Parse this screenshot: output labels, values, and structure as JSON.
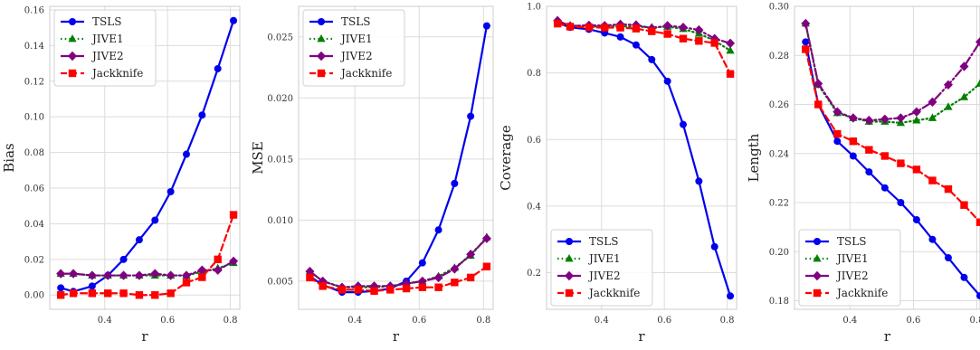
{
  "colors": {
    "TSLS": "#0000ee",
    "JIVE1": "#008000",
    "JIVE2": "#800080",
    "Jackknife": "#ff0000",
    "grid": "#dcdcdc",
    "frame": "#cccccc"
  },
  "chart_data": [
    {
      "type": "line",
      "xlabel": "r",
      "ylabel": "Bias",
      "xlim": [
        0.225,
        0.83
      ],
      "ylim": [
        -0.008,
        0.162
      ],
      "xticks": [
        0.4,
        0.6,
        0.8
      ],
      "xtick_labels": [
        "0.4",
        "0.6",
        "0.8"
      ],
      "yticks": [
        0.0,
        0.02,
        0.04,
        0.06,
        0.08,
        0.1,
        0.12,
        0.14,
        0.16
      ],
      "ytick_labels": [
        "0.00",
        "0.02",
        "0.04",
        "0.06",
        "0.08",
        "0.10",
        "0.12",
        "0.14",
        "0.16"
      ],
      "grid": true,
      "legend": "upper-left",
      "x": [
        0.26,
        0.3,
        0.36,
        0.41,
        0.46,
        0.51,
        0.56,
        0.61,
        0.66,
        0.71,
        0.76,
        0.81
      ],
      "series": [
        {
          "name": "TSLS",
          "values": [
            0.004,
            0.002,
            0.005,
            0.011,
            0.02,
            0.031,
            0.042,
            0.058,
            0.079,
            0.101,
            0.127,
            0.154
          ]
        },
        {
          "name": "JIVE1",
          "values": [
            0.012,
            0.012,
            0.011,
            0.011,
            0.011,
            0.011,
            0.011,
            0.011,
            0.011,
            0.013,
            0.015,
            0.018
          ]
        },
        {
          "name": "JIVE2",
          "values": [
            0.012,
            0.012,
            0.011,
            0.011,
            0.011,
            0.011,
            0.012,
            0.011,
            0.011,
            0.014,
            0.014,
            0.019
          ]
        },
        {
          "name": "Jackknife",
          "values": [
            0.0,
            0.001,
            0.001,
            0.001,
            0.001,
            0.0,
            0.0,
            0.001,
            0.007,
            0.01,
            0.02,
            0.045
          ]
        }
      ]
    },
    {
      "type": "line",
      "xlabel": "r",
      "ylabel": "MSE",
      "xlim": [
        0.225,
        0.83
      ],
      "ylim": [
        0.0027,
        0.0275
      ],
      "xticks": [
        0.4,
        0.6,
        0.8
      ],
      "xtick_labels": [
        "0.4",
        "0.6",
        "0.8"
      ],
      "yticks": [
        0.005,
        0.01,
        0.015,
        0.02,
        0.025
      ],
      "ytick_labels": [
        "0.005",
        "0.010",
        "0.015",
        "0.020",
        "0.025"
      ],
      "grid": true,
      "legend": "upper-left",
      "x": [
        0.26,
        0.3,
        0.36,
        0.41,
        0.46,
        0.51,
        0.56,
        0.61,
        0.66,
        0.71,
        0.76,
        0.81
      ],
      "series": [
        {
          "name": "TSLS",
          "values": [
            0.0054,
            0.0047,
            0.0041,
            0.0041,
            0.0042,
            0.0044,
            0.005,
            0.0065,
            0.0092,
            0.013,
            0.0185,
            0.0259
          ]
        },
        {
          "name": "JIVE1",
          "values": [
            0.0058,
            0.005,
            0.0045,
            0.0045,
            0.0045,
            0.0046,
            0.0048,
            0.005,
            0.0054,
            0.0061,
            0.0071,
            0.0086
          ]
        },
        {
          "name": "JIVE2",
          "values": [
            0.0058,
            0.005,
            0.0045,
            0.0046,
            0.0046,
            0.0046,
            0.0048,
            0.005,
            0.0053,
            0.006,
            0.0072,
            0.0085
          ]
        },
        {
          "name": "Jackknife",
          "values": [
            0.0053,
            0.0046,
            0.0043,
            0.0043,
            0.0042,
            0.0043,
            0.0044,
            0.0045,
            0.0045,
            0.0049,
            0.0053,
            0.0062
          ]
        }
      ]
    },
    {
      "type": "line",
      "xlabel": "r",
      "ylabel": "Coverage",
      "xlim": [
        0.225,
        0.83
      ],
      "ylim": [
        0.09,
        1.0
      ],
      "xticks": [
        0.4,
        0.6,
        0.8
      ],
      "xtick_labels": [
        "0.4",
        "0.6",
        "0.8"
      ],
      "yticks": [
        0.2,
        0.4,
        0.6,
        0.8,
        1.0
      ],
      "ytick_labels": [
        "0.2",
        "0.4",
        "0.6",
        "0.8",
        "1.0"
      ],
      "grid": true,
      "legend": "lower-left",
      "x": [
        0.26,
        0.3,
        0.36,
        0.41,
        0.46,
        0.51,
        0.56,
        0.61,
        0.66,
        0.71,
        0.76,
        0.81
      ],
      "series": [
        {
          "name": "TSLS",
          "values": [
            0.95,
            0.937,
            0.931,
            0.92,
            0.908,
            0.884,
            0.84,
            0.775,
            0.645,
            0.475,
            0.278,
            0.13
          ]
        },
        {
          "name": "JIVE1",
          "values": [
            0.955,
            0.942,
            0.94,
            0.939,
            0.94,
            0.939,
            0.937,
            0.939,
            0.932,
            0.918,
            0.897,
            0.867
          ]
        },
        {
          "name": "JIVE2",
          "values": [
            0.957,
            0.941,
            0.943,
            0.942,
            0.946,
            0.944,
            0.934,
            0.942,
            0.937,
            0.929,
            0.903,
            0.889
          ]
        },
        {
          "name": "Jackknife",
          "values": [
            0.948,
            0.939,
            0.937,
            0.936,
            0.936,
            0.933,
            0.925,
            0.917,
            0.903,
            0.896,
            0.89,
            0.797
          ]
        }
      ]
    },
    {
      "type": "line",
      "xlabel": "r",
      "ylabel": "Length",
      "xlim": [
        0.225,
        0.81
      ],
      "ylim": [
        0.1765,
        0.3
      ],
      "xticks": [
        0.4,
        0.6,
        0.8
      ],
      "xtick_labels": [
        "0.4",
        "0.6",
        "0.8"
      ],
      "yticks": [
        0.18,
        0.2,
        0.22,
        0.24,
        0.26,
        0.28,
        0.3
      ],
      "ytick_labels": [
        "0.18",
        "0.20",
        "0.22",
        "0.24",
        "0.26",
        "0.28",
        "0.30"
      ],
      "grid": true,
      "legend": "lower-left",
      "x": [
        0.26,
        0.3,
        0.36,
        0.41,
        0.46,
        0.51,
        0.56,
        0.61,
        0.66,
        0.71,
        0.76,
        0.81
      ],
      "series": [
        {
          "name": "TSLS",
          "values": [
            0.2855,
            0.26,
            0.245,
            0.239,
            0.2325,
            0.226,
            0.22,
            0.213,
            0.205,
            0.1975,
            0.1895,
            0.182
          ]
        },
        {
          "name": "JIVE1",
          "values": [
            0.293,
            0.268,
            0.2565,
            0.2545,
            0.253,
            0.253,
            0.2525,
            0.2535,
            0.2545,
            0.259,
            0.263,
            0.2685
          ]
        },
        {
          "name": "JIVE2",
          "values": [
            0.293,
            0.2685,
            0.257,
            0.2545,
            0.2535,
            0.254,
            0.2545,
            0.257,
            0.261,
            0.268,
            0.2755,
            0.2855
          ]
        },
        {
          "name": "Jackknife",
          "values": [
            0.2825,
            0.26,
            0.248,
            0.245,
            0.2415,
            0.239,
            0.236,
            0.2335,
            0.229,
            0.2255,
            0.219,
            0.212
          ]
        }
      ]
    }
  ]
}
